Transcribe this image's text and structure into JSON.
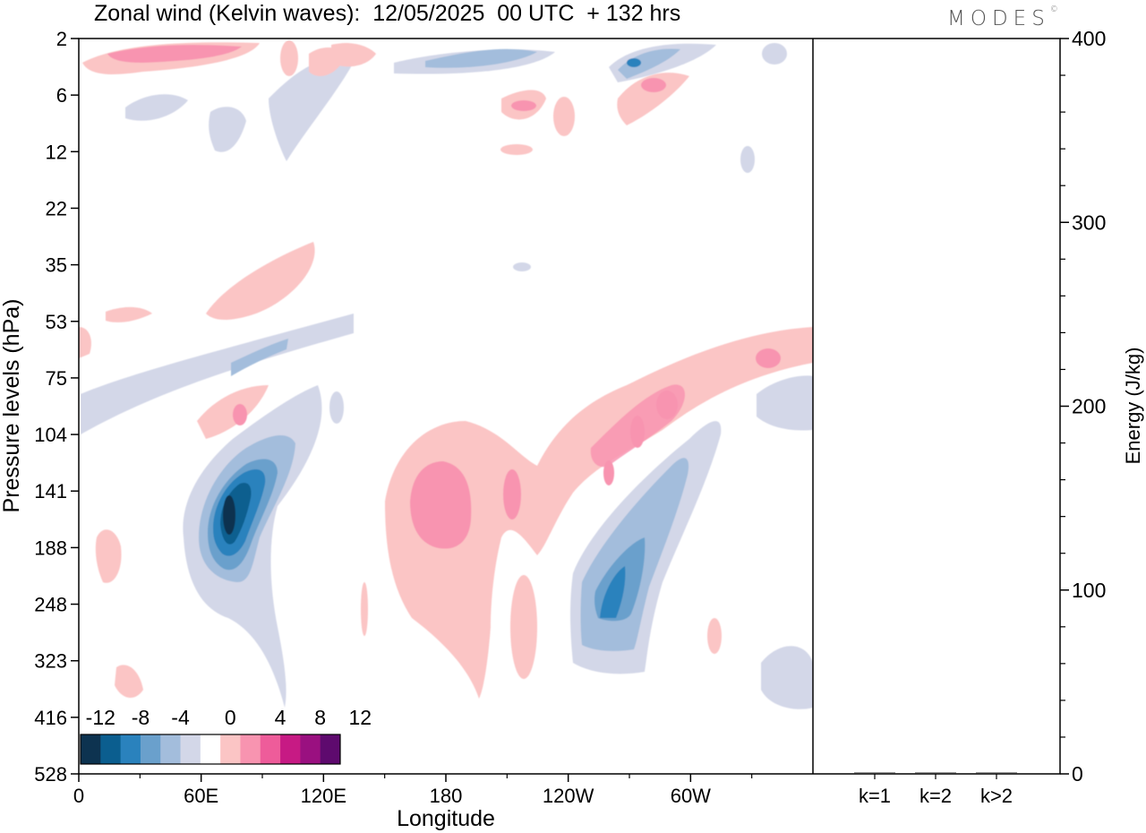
{
  "chart_data": [
    {
      "type": "heatmap",
      "title": "Zonal wind (Kelvin waves):  12/05/2025  00 UTC  + 132 hrs",
      "xlabel": "Longitude",
      "ylabel": "Pressure levels (hPa)",
      "x_ticks": [
        "0",
        "60E",
        "120E",
        "180",
        "120W",
        "60W"
      ],
      "x_tick_values": [
        0,
        60,
        120,
        180,
        240,
        300
      ],
      "xlim": [
        0,
        360
      ],
      "y_ticks": [
        "2",
        "6",
        "12",
        "22",
        "35",
        "53",
        "75",
        "104",
        "141",
        "188",
        "248",
        "323",
        "416",
        "528"
      ],
      "y_scale": "level-index",
      "colorbar": {
        "labels": [
          "-12",
          "-8",
          "-4",
          "0",
          "4",
          "8",
          "12"
        ],
        "levels": [
          -14,
          -12,
          -10,
          -8,
          -6,
          -4,
          -2,
          2,
          4,
          6,
          8,
          10,
          12,
          14
        ],
        "colors": [
          "#0d3350",
          "#0b5e8f",
          "#2a82bd",
          "#6aa0cc",
          "#a3bddc",
          "#d3d7e8",
          "#ffffff",
          "#fbc5c5",
          "#f894b0",
          "#ee5c9a",
          "#c71a84",
          "#9a1080",
          "#5e0a6e"
        ]
      },
      "features": [
        {
          "sign": "negative",
          "lon": 63,
          "level": "141",
          "peak": -13
        },
        {
          "sign": "negative",
          "lon": 263,
          "level": "248",
          "peak": -8
        },
        {
          "sign": "negative",
          "lon": 195,
          "level": "2",
          "peak": -8
        },
        {
          "sign": "negative",
          "lon": 272,
          "level": "2",
          "peak": -8
        },
        {
          "sign": "positive",
          "lon": 165,
          "level": "141",
          "peak": 6
        },
        {
          "sign": "positive",
          "lon": 230,
          "level": "104",
          "peak": 6
        },
        {
          "sign": "positive",
          "lon": 50,
          "level": "2",
          "peak": 6
        }
      ]
    },
    {
      "type": "bar",
      "categories": [
        "k=1",
        "k=2",
        "k>2"
      ],
      "values": [
        0,
        0,
        0
      ],
      "ylabel": "Energy (J/kg)",
      "ylim": [
        0,
        400
      ],
      "y_ticks": [
        "0",
        "100",
        "200",
        "300",
        "400"
      ]
    }
  ],
  "logo": {
    "text": "MODES",
    "mark": "©"
  }
}
